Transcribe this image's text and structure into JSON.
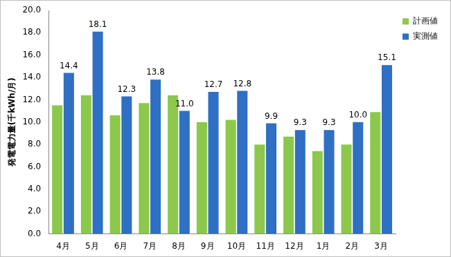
{
  "chart_data": {
    "type": "bar",
    "y_label": "発電電力量(千kWh/月)",
    "categories": [
      "4月",
      "5月",
      "6月",
      "7月",
      "8月",
      "9月",
      "10月",
      "11月",
      "12月",
      "1月",
      "2月",
      "3月"
    ],
    "series": [
      {
        "name": "計画値",
        "color": "#8cc84b",
        "values": [
          11.5,
          12.4,
          10.6,
          11.7,
          12.4,
          10.0,
          10.2,
          8.0,
          8.7,
          7.4,
          8.0,
          10.9
        ]
      },
      {
        "name": "実測値",
        "color": "#2f6fc4",
        "data_labels": true,
        "values": [
          14.4,
          18.1,
          12.3,
          13.8,
          11.0,
          12.7,
          12.8,
          9.9,
          9.3,
          9.3,
          10.0,
          15.1
        ],
        "value_labels": [
          "14.4",
          "18.1",
          "12.3",
          "13.8",
          "11.0",
          "12.7",
          "12.8",
          "9.9",
          "9.3",
          "9.3",
          "10.0",
          "15.1"
        ]
      }
    ],
    "ylim": [
      0,
      20
    ],
    "yticks": [
      {
        "value": 0,
        "label": "0.0"
      },
      {
        "value": 2,
        "label": "2.0"
      },
      {
        "value": 4,
        "label": "4.0"
      },
      {
        "value": 6,
        "label": "6.0"
      },
      {
        "value": 8,
        "label": "8.0"
      },
      {
        "value": 10,
        "label": "10.0"
      },
      {
        "value": 12,
        "label": "12.0"
      },
      {
        "value": 14,
        "label": "14.0"
      },
      {
        "value": 16,
        "label": "16.0"
      },
      {
        "value": 18,
        "label": "18.0"
      },
      {
        "value": 20,
        "label": "20.0"
      }
    ],
    "grid": false,
    "legend": "right"
  }
}
